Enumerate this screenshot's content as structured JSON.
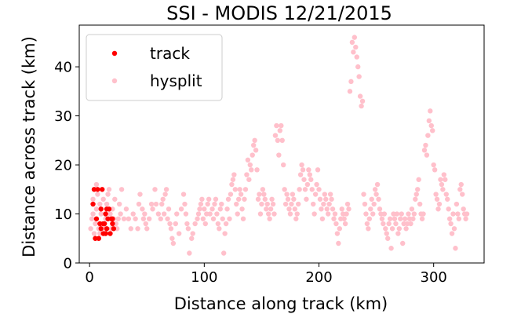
{
  "chart_data": {
    "type": "scatter",
    "title": "SSI - MODIS 12/21/2015",
    "xlabel": "Distance along track (km)",
    "ylabel": "Distance across track (km)",
    "xlim": [
      -9,
      344
    ],
    "ylim": [
      0,
      48.5
    ],
    "xticks": [
      0,
      100,
      200,
      300
    ],
    "yticks": [
      0,
      10,
      20,
      30,
      40
    ],
    "grid": false,
    "legend_position": "top-left",
    "colors": {
      "track": "#ff0000",
      "hysplit": "#ffc0cb",
      "frame": "#000000"
    },
    "series": [
      {
        "name": "track",
        "points": [
          [
            3,
            12
          ],
          [
            4,
            15
          ],
          [
            5,
            5
          ],
          [
            6,
            9
          ],
          [
            7,
            15
          ],
          [
            8,
            5
          ],
          [
            9,
            8
          ],
          [
            10,
            7
          ],
          [
            10,
            11
          ],
          [
            11,
            15
          ],
          [
            12,
            8
          ],
          [
            12,
            6
          ],
          [
            13,
            8
          ],
          [
            14,
            6
          ],
          [
            14,
            10
          ],
          [
            15,
            7
          ],
          [
            15,
            11
          ],
          [
            16,
            9
          ],
          [
            17,
            11
          ],
          [
            18,
            6
          ],
          [
            19,
            9
          ],
          [
            20,
            8
          ],
          [
            21,
            7
          ],
          [
            20,
            9
          ]
        ]
      },
      {
        "name": "hysplit",
        "points": [
          [
            1,
            7
          ],
          [
            2,
            9
          ],
          [
            3,
            10
          ],
          [
            3,
            13
          ],
          [
            4,
            6
          ],
          [
            5,
            8
          ],
          [
            6,
            11
          ],
          [
            6,
            16
          ],
          [
            7,
            14
          ],
          [
            8,
            7
          ],
          [
            9,
            6
          ],
          [
            9,
            12
          ],
          [
            10,
            10
          ],
          [
            11,
            8
          ],
          [
            12,
            13
          ],
          [
            13,
            7
          ],
          [
            14,
            9
          ],
          [
            15,
            12
          ],
          [
            16,
            14
          ],
          [
            17,
            15
          ],
          [
            18,
            10
          ],
          [
            19,
            7
          ],
          [
            20,
            11
          ],
          [
            21,
            9
          ],
          [
            22,
            13
          ],
          [
            23,
            8
          ],
          [
            24,
            7
          ],
          [
            25,
            9
          ],
          [
            26,
            12
          ],
          [
            27,
            10
          ],
          [
            28,
            15
          ],
          [
            30,
            9
          ],
          [
            32,
            11
          ],
          [
            34,
            9
          ],
          [
            36,
            7
          ],
          [
            38,
            10
          ],
          [
            40,
            9
          ],
          [
            42,
            7
          ],
          [
            43,
            12
          ],
          [
            44,
            14
          ],
          [
            46,
            11
          ],
          [
            47,
            9
          ],
          [
            48,
            10
          ],
          [
            49,
            8
          ],
          [
            50,
            7
          ],
          [
            52,
            9
          ],
          [
            54,
            12
          ],
          [
            55,
            11
          ],
          [
            57,
            15
          ],
          [
            58,
            12
          ],
          [
            60,
            10
          ],
          [
            62,
            9
          ],
          [
            63,
            12
          ],
          [
            64,
            13
          ],
          [
            65,
            10
          ],
          [
            66,
            14
          ],
          [
            67,
            15
          ],
          [
            68,
            9
          ],
          [
            69,
            11
          ],
          [
            70,
            8
          ],
          [
            71,
            7
          ],
          [
            72,
            5
          ],
          [
            73,
            4
          ],
          [
            75,
            8
          ],
          [
            76,
            10
          ],
          [
            78,
            6
          ],
          [
            80,
            11
          ],
          [
            82,
            14
          ],
          [
            83,
            12
          ],
          [
            84,
            10
          ],
          [
            85,
            8
          ],
          [
            86,
            7
          ],
          [
            87,
            2
          ],
          [
            89,
            5
          ],
          [
            90,
            6
          ],
          [
            92,
            8
          ],
          [
            94,
            9
          ],
          [
            95,
            10
          ],
          [
            96,
            11
          ],
          [
            97,
            12
          ],
          [
            98,
            13
          ],
          [
            99,
            9
          ],
          [
            100,
            11
          ],
          [
            101,
            8
          ],
          [
            102,
            10
          ],
          [
            103,
            12
          ],
          [
            104,
            13
          ],
          [
            105,
            10
          ],
          [
            107,
            11
          ],
          [
            108,
            9
          ],
          [
            109,
            12
          ],
          [
            110,
            13
          ],
          [
            111,
            10
          ],
          [
            112,
            8
          ],
          [
            113,
            7
          ],
          [
            114,
            11
          ],
          [
            115,
            12
          ],
          [
            116,
            9
          ],
          [
            117,
            2
          ],
          [
            118,
            6
          ],
          [
            119,
            8
          ],
          [
            120,
            11
          ],
          [
            121,
            13
          ],
          [
            122,
            9
          ],
          [
            123,
            14
          ],
          [
            124,
            16
          ],
          [
            125,
            17
          ],
          [
            126,
            18
          ],
          [
            127,
            15
          ],
          [
            128,
            12
          ],
          [
            129,
            10
          ],
          [
            130,
            13
          ],
          [
            131,
            15
          ],
          [
            132,
            14
          ],
          [
            133,
            11
          ],
          [
            134,
            9
          ],
          [
            135,
            13
          ],
          [
            136,
            15
          ],
          [
            137,
            18
          ],
          [
            138,
            21
          ],
          [
            139,
            17
          ],
          [
            140,
            20
          ],
          [
            141,
            19
          ],
          [
            142,
            22
          ],
          [
            143,
            24
          ],
          [
            144,
            25
          ],
          [
            145,
            23
          ],
          [
            146,
            19
          ],
          [
            147,
            13
          ],
          [
            148,
            14
          ],
          [
            149,
            10
          ],
          [
            150,
            12
          ],
          [
            151,
            15
          ],
          [
            152,
            14
          ],
          [
            153,
            13
          ],
          [
            154,
            11
          ],
          [
            155,
            12
          ],
          [
            156,
            10
          ],
          [
            157,
            9
          ],
          [
            158,
            11
          ],
          [
            159,
            13
          ],
          [
            160,
            12
          ],
          [
            161,
            10
          ],
          [
            162,
            26
          ],
          [
            163,
            28
          ],
          [
            164,
            25
          ],
          [
            165,
            22
          ],
          [
            166,
            27
          ],
          [
            167,
            28
          ],
          [
            168,
            25
          ],
          [
            169,
            20
          ],
          [
            170,
            15
          ],
          [
            171,
            12
          ],
          [
            172,
            14
          ],
          [
            173,
            13
          ],
          [
            174,
            11
          ],
          [
            175,
            10
          ],
          [
            176,
            12
          ],
          [
            177,
            14
          ],
          [
            178,
            13
          ],
          [
            179,
            11
          ],
          [
            180,
            9
          ],
          [
            181,
            10
          ],
          [
            182,
            12
          ],
          [
            183,
            15
          ],
          [
            184,
            18
          ],
          [
            185,
            20
          ],
          [
            186,
            19
          ],
          [
            187,
            17
          ],
          [
            188,
            15
          ],
          [
            189,
            13
          ],
          [
            190,
            16
          ],
          [
            191,
            19
          ],
          [
            192,
            18
          ],
          [
            193,
            17
          ],
          [
            194,
            15
          ],
          [
            195,
            12
          ],
          [
            196,
            10
          ],
          [
            197,
            14
          ],
          [
            198,
            16
          ],
          [
            199,
            19
          ],
          [
            200,
            15
          ],
          [
            201,
            13
          ],
          [
            202,
            11
          ],
          [
            203,
            9
          ],
          [
            204,
            12
          ],
          [
            205,
            14
          ],
          [
            206,
            13
          ],
          [
            207,
            11
          ],
          [
            208,
            10
          ],
          [
            209,
            12
          ],
          [
            210,
            14
          ],
          [
            211,
            13
          ],
          [
            212,
            11
          ],
          [
            213,
            9
          ],
          [
            214,
            10
          ],
          [
            215,
            8
          ],
          [
            216,
            6
          ],
          [
            217,
            4
          ],
          [
            218,
            7
          ],
          [
            219,
            9
          ],
          [
            220,
            11
          ],
          [
            221,
            10
          ],
          [
            222,
            9
          ],
          [
            223,
            8
          ],
          [
            224,
            10
          ],
          [
            225,
            12
          ],
          [
            226,
            11
          ],
          [
            227,
            35
          ],
          [
            228,
            37
          ],
          [
            229,
            45
          ],
          [
            230,
            43
          ],
          [
            231,
            46
          ],
          [
            232,
            44
          ],
          [
            233,
            42
          ],
          [
            234,
            40
          ],
          [
            235,
            38
          ],
          [
            236,
            34
          ],
          [
            237,
            32
          ],
          [
            238,
            33
          ],
          [
            239,
            14
          ],
          [
            240,
            12
          ],
          [
            241,
            10
          ],
          [
            242,
            8
          ],
          [
            243,
            7
          ],
          [
            244,
            9
          ],
          [
            245,
            11
          ],
          [
            246,
            13
          ],
          [
            247,
            10
          ],
          [
            248,
            12
          ],
          [
            249,
            15
          ],
          [
            250,
            14
          ],
          [
            251,
            16
          ],
          [
            252,
            13
          ],
          [
            253,
            11
          ],
          [
            254,
            10
          ],
          [
            255,
            9
          ],
          [
            256,
            8
          ],
          [
            257,
            10
          ],
          [
            258,
            7
          ],
          [
            259,
            6
          ],
          [
            260,
            5
          ],
          [
            261,
            8
          ],
          [
            262,
            9
          ],
          [
            263,
            3
          ],
          [
            264,
            7
          ],
          [
            265,
            10
          ],
          [
            266,
            9
          ],
          [
            267,
            8
          ],
          [
            268,
            10
          ],
          [
            269,
            6
          ],
          [
            270,
            7
          ],
          [
            271,
            9
          ],
          [
            272,
            10
          ],
          [
            273,
            4
          ],
          [
            274,
            8
          ],
          [
            275,
            9
          ],
          [
            276,
            7
          ],
          [
            277,
            8
          ],
          [
            278,
            10
          ],
          [
            279,
            9
          ],
          [
            280,
            8
          ],
          [
            281,
            11
          ],
          [
            282,
            9
          ],
          [
            283,
            10
          ],
          [
            284,
            13
          ],
          [
            285,
            14
          ],
          [
            286,
            15
          ],
          [
            287,
            17
          ],
          [
            288,
            12
          ],
          [
            289,
            10
          ],
          [
            290,
            9
          ],
          [
            291,
            10
          ],
          [
            292,
            23
          ],
          [
            293,
            24
          ],
          [
            294,
            22
          ],
          [
            295,
            26
          ],
          [
            296,
            29
          ],
          [
            297,
            31
          ],
          [
            298,
            28
          ],
          [
            299,
            27
          ],
          [
            300,
            20
          ],
          [
            301,
            19
          ],
          [
            302,
            14
          ],
          [
            303,
            13
          ],
          [
            304,
            11
          ],
          [
            305,
            12
          ],
          [
            306,
            17
          ],
          [
            307,
            16
          ],
          [
            308,
            15
          ],
          [
            309,
            18
          ],
          [
            310,
            17
          ],
          [
            311,
            14
          ],
          [
            312,
            13
          ],
          [
            313,
            11
          ],
          [
            314,
            9
          ],
          [
            315,
            8
          ],
          [
            316,
            6
          ],
          [
            317,
            10
          ],
          [
            318,
            7
          ],
          [
            319,
            3
          ],
          [
            320,
            12
          ],
          [
            321,
            10
          ],
          [
            322,
            9
          ],
          [
            323,
            15
          ],
          [
            324,
            16
          ],
          [
            325,
            14
          ],
          [
            326,
            11
          ],
          [
            327,
            10
          ],
          [
            328,
            9
          ],
          [
            329,
            10
          ]
        ]
      }
    ]
  }
}
